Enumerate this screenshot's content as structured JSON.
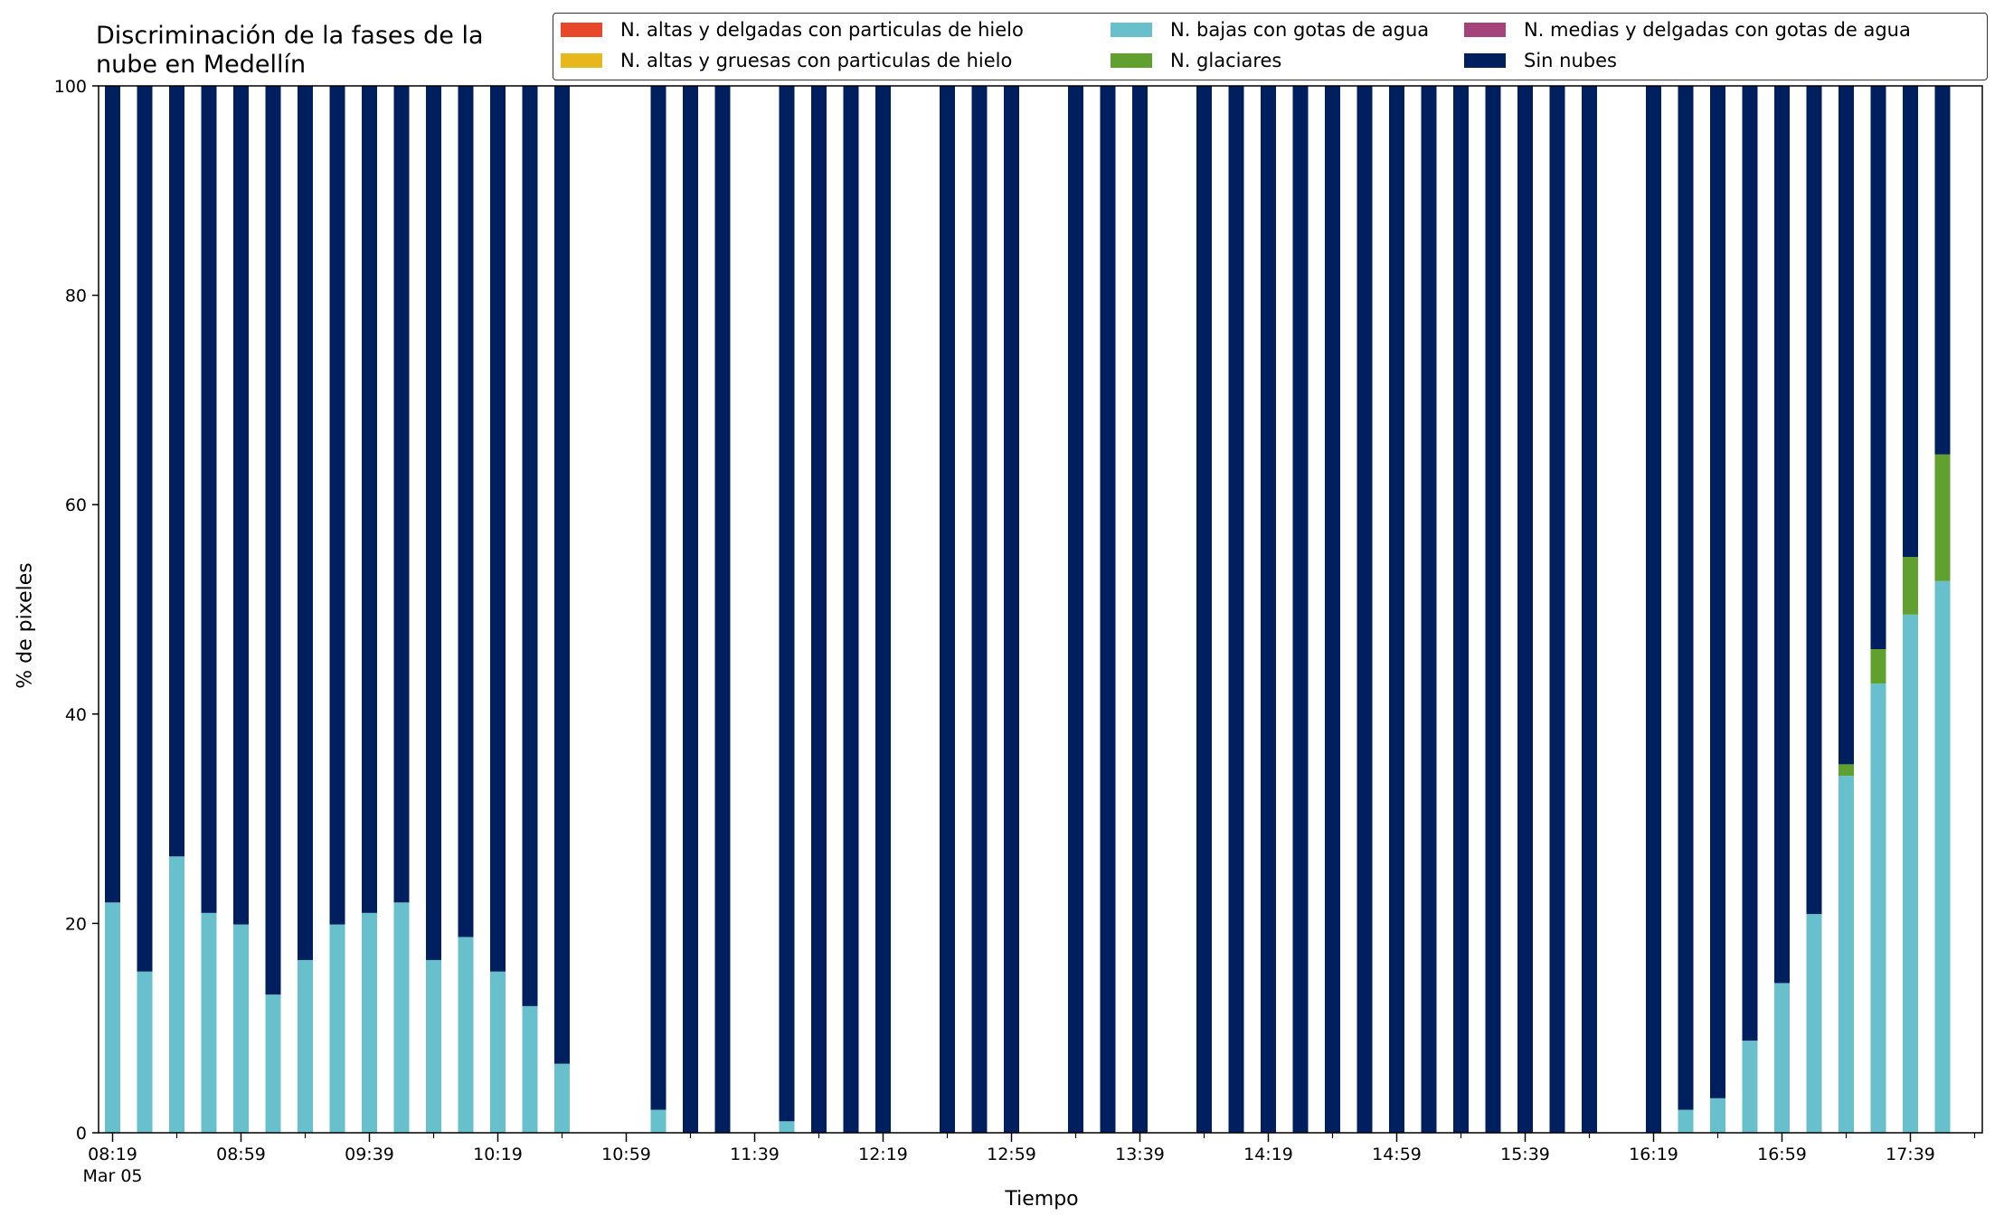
{
  "chart_data": {
    "type": "bar",
    "stacked": true,
    "title": "Discriminación de la fases de la\nnube en Medellín",
    "xlabel": "Tiempo",
    "ylabel": "% de pixeles",
    "ylim": [
      0,
      100
    ],
    "yticks": [
      0,
      20,
      40,
      60,
      80,
      100
    ],
    "xtick_labels": [
      "08:19",
      "08:59",
      "09:39",
      "10:19",
      "10:59",
      "11:39",
      "12:19",
      "12:59",
      "13:39",
      "14:19",
      "14:59",
      "15:39",
      "16:19",
      "16:59",
      "17:39"
    ],
    "xtick_sublabel": "Mar 05",
    "bar_interval_minutes": 10,
    "legend_position": "top-right",
    "x_start": "08:19",
    "x_end": "18:09",
    "categories": [
      "08:19",
      "08:29",
      "08:39",
      "08:49",
      "08:59",
      "09:09",
      "09:19",
      "09:29",
      "09:39",
      "09:49",
      "09:59",
      "10:09",
      "10:19",
      "10:29",
      "10:39",
      "10:49",
      "10:59",
      "11:09",
      "11:19",
      "11:29",
      "11:39",
      "11:49",
      "11:59",
      "12:09",
      "12:19",
      "12:29",
      "12:39",
      "12:49",
      "12:59",
      "13:09",
      "13:19",
      "13:29",
      "13:39",
      "13:49",
      "13:59",
      "14:09",
      "14:19",
      "14:29",
      "14:39",
      "14:49",
      "14:59",
      "15:09",
      "15:19",
      "15:29",
      "15:39",
      "15:49",
      "15:59",
      "16:09",
      "16:19",
      "16:29",
      "16:39",
      "16:49",
      "16:59",
      "17:09",
      "17:19",
      "17:29",
      "17:39",
      "17:49"
    ],
    "series": [
      {
        "name": "N. altas y delgadas con particulas de hielo",
        "color": "#e8472a",
        "values": [
          0,
          0,
          0,
          0,
          0,
          0,
          0,
          0,
          0,
          0,
          0,
          0,
          0,
          0,
          0,
          0,
          0,
          0,
          0,
          0,
          0,
          0,
          0,
          0,
          0,
          0,
          0,
          0,
          0,
          0,
          0,
          0,
          0,
          0,
          0,
          0,
          0,
          0,
          0,
          0,
          0,
          0,
          0,
          0,
          0,
          0,
          0,
          0,
          0,
          0,
          0,
          0,
          0,
          0,
          0,
          0,
          0,
          0
        ]
      },
      {
        "name": "N. altas y gruesas con particulas de hielo",
        "color": "#e6b81b",
        "values": [
          0,
          0,
          0,
          0,
          0,
          0,
          0,
          0,
          0,
          0,
          0,
          0,
          0,
          0,
          0,
          0,
          0,
          0,
          0,
          0,
          0,
          0,
          0,
          0,
          0,
          0,
          0,
          0,
          0,
          0,
          0,
          0,
          0,
          0,
          0,
          0,
          0,
          0,
          0,
          0,
          0,
          0,
          0,
          0,
          0,
          0,
          0,
          0,
          0,
          0,
          0,
          0,
          0,
          0,
          0,
          0,
          0,
          0
        ]
      },
      {
        "name": "N. bajas con gotas de agua",
        "color": "#67c0cb",
        "values": [
          22,
          15.4,
          26.4,
          21,
          19.9,
          13.2,
          16.5,
          19.9,
          21,
          22,
          16.5,
          18.7,
          15.4,
          12.1,
          6.6,
          null,
          null,
          2.2,
          0,
          0,
          null,
          1.1,
          0,
          0,
          0,
          null,
          0,
          0,
          0,
          null,
          0,
          0,
          0,
          null,
          0,
          0,
          0,
          0,
          0,
          0,
          0,
          0,
          0,
          0,
          0,
          0,
          0,
          null,
          0,
          2.2,
          3.3,
          8.8,
          14.3,
          20.9,
          34.1,
          42.9,
          49.5,
          52.7
        ]
      },
      {
        "name": "N. medias y delgadas con gotas de agua",
        "color": "#a4447b",
        "values": [
          0,
          0,
          0,
          0,
          0,
          0,
          0,
          0,
          0,
          0,
          0,
          0,
          0,
          0,
          0,
          null,
          null,
          0,
          0,
          0,
          null,
          0,
          0,
          0,
          0,
          null,
          0,
          0,
          0,
          null,
          0,
          0,
          0,
          null,
          0,
          0,
          0,
          0,
          0,
          0,
          0,
          0,
          0,
          0,
          0,
          0,
          0,
          null,
          0,
          0,
          0,
          0,
          0,
          0,
          0,
          0,
          0,
          0
        ]
      },
      {
        "name": "N. glaciares",
        "color": "#5fa02e",
        "values": [
          0,
          0,
          0,
          0,
          0,
          0,
          0,
          0,
          0,
          0,
          0,
          0,
          0,
          0,
          0,
          null,
          null,
          0,
          0,
          0,
          null,
          0,
          0,
          0,
          0,
          null,
          0,
          0,
          0,
          null,
          0,
          0,
          0,
          null,
          0,
          0,
          0,
          0,
          0,
          0,
          0,
          0,
          0,
          0,
          0,
          0,
          0,
          null,
          0,
          0,
          0,
          0,
          0,
          0,
          1.1,
          3.3,
          5.5,
          12.1
        ]
      },
      {
        "name": "Sin nubes",
        "color": "#001f5f",
        "values": [
          78,
          84.6,
          73.6,
          79,
          80.1,
          86.8,
          83.5,
          80.1,
          79,
          78,
          83.5,
          81.3,
          84.6,
          87.9,
          93.4,
          null,
          null,
          97.8,
          100,
          100,
          null,
          98.9,
          100,
          100,
          100,
          null,
          100,
          100,
          100,
          null,
          100,
          100,
          100,
          null,
          100,
          100,
          100,
          100,
          100,
          100,
          100,
          100,
          100,
          100,
          100,
          100,
          100,
          null,
          100,
          97.8,
          96.7,
          91.2,
          85.7,
          79.1,
          64.8,
          53.8,
          45,
          35.2
        ]
      }
    ]
  }
}
